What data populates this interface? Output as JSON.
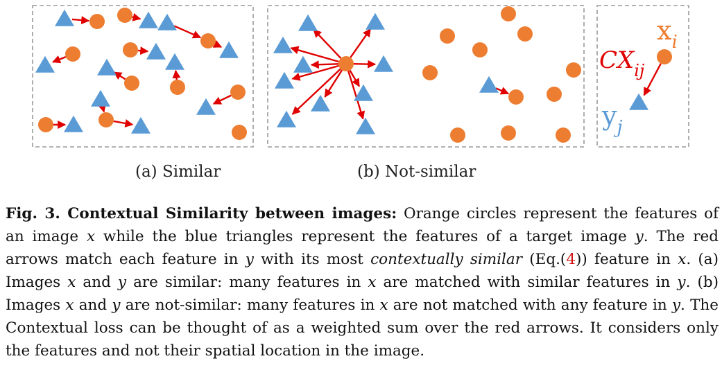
{
  "colors": {
    "circle": "#ED7D31",
    "triangle": "#5B9BD5",
    "arrow": "#E00000",
    "border": "#9a9a9a"
  },
  "panels": {
    "a_label": "(a) Similar",
    "b_label": "(b) Not-similar"
  },
  "legend": {
    "x_label": "x",
    "x_sub": "i",
    "y_label": "y",
    "y_sub": "j",
    "cx_label": "CX",
    "cx_sub": "ij"
  },
  "caption": {
    "fig_label": "Fig. 3. Contextual Similarity between images:",
    "text_1": " Orange circles represent the features of an image ",
    "var_x": "x",
    "text_2": " while the blue triangles represent the features of a target image ",
    "var_y": "y",
    "text_3": ". The red arrows match each feature in ",
    "text_4": " with its most ",
    "em_phrase": "contextually similar",
    "text_5": " (Eq.(",
    "eq_ref": "4",
    "text_6": ")) feature in ",
    "text_7": ". (a) Images ",
    "text_8": " and ",
    "text_9": " are similar: many features in ",
    "text_10": " are matched with similar features in ",
    "text_11": ". (b) Images ",
    "text_12": " are not-similar: many features in ",
    "text_13": " are not matched with any feature in ",
    "text_14": ". The Contextual loss can be thought of as a weighted sum over the red arrows. It considers only the features and not their spatial location in the image."
  }
}
